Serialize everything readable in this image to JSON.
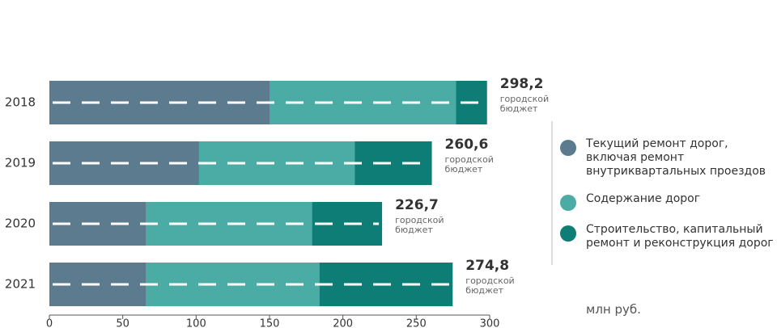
{
  "chart_data": {
    "type": "stacked-bar-horizontal",
    "categories": [
      "2018",
      "2019",
      "2020",
      "2021"
    ],
    "series": [
      {
        "name": "Текущий ремонт дорог, включая ремонт внутриквартальных проездов",
        "color": "#5d7b8f",
        "values": [
          150,
          102,
          66,
          66
        ]
      },
      {
        "name": "Содержание дорог",
        "color": "#4aaca4",
        "values": [
          127,
          106,
          113,
          118
        ]
      },
      {
        "name": "Строительство, капитальный ремонт и реконструкция дорог",
        "color": "#0e7d75",
        "values": [
          21.2,
          52.6,
          47.7,
          90.8
        ]
      }
    ],
    "totals": [
      298.2,
      260.6,
      226.7,
      274.8
    ],
    "total_labels": [
      "298,2",
      "260,6",
      "226,7",
      "274,8"
    ],
    "total_note": "городской бюджет",
    "unit": "млн руб.",
    "xlim": [
      0,
      300
    ],
    "xticks": [
      0,
      50,
      100,
      150,
      200,
      250,
      300
    ]
  }
}
